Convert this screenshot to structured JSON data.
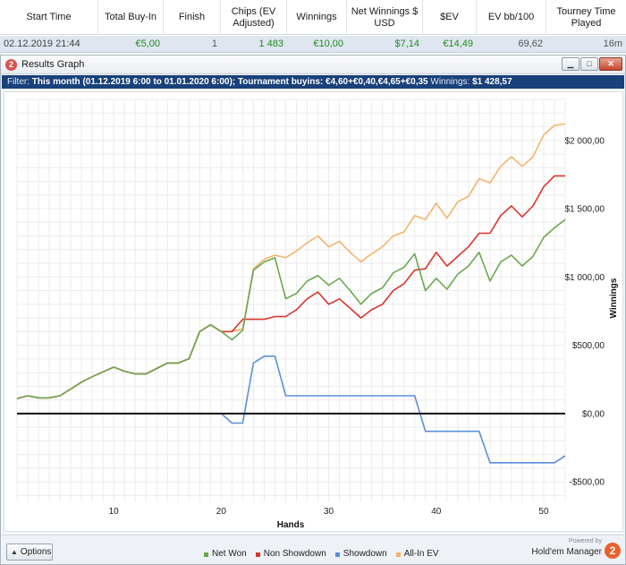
{
  "table": {
    "headers": [
      "Start Time",
      "Total Buy-In",
      "Finish",
      "Chips (EV Adjusted)",
      "Winnings",
      "Net Winnings $ USD",
      "$EV",
      "EV bb/100",
      "Tourney Time Played"
    ],
    "row": [
      "02.12.2019 21:44",
      "€5,00",
      "1",
      "1 483",
      "€10,00",
      "$7,14",
      "€14,49",
      "69,62",
      "16m"
    ]
  },
  "window": {
    "title": "Results Graph",
    "buttons": {
      "minimize": "▁",
      "maximize": "□",
      "close": "✕"
    }
  },
  "filter": {
    "label": "Filter:",
    "value": "This month (01.12.2019 6:00 to 01.01.2020 6:00); Tournament buyins: €4,60+€0,40,€4,65+€0,35",
    "winnings_label": "Winnings:",
    "winnings_value": "$1 428,57"
  },
  "chart_data": {
    "type": "line",
    "xlabel": "Hands",
    "ylabel": "Winnings",
    "xlim": [
      1,
      52
    ],
    "ylim": [
      -650,
      2300
    ],
    "x_ticks": [
      10,
      20,
      30,
      40,
      50
    ],
    "y_ticks": [
      {
        "value": -500,
        "label": "-$500,00"
      },
      {
        "value": 0,
        "label": "$0,00"
      },
      {
        "value": 500,
        "label": "$500,00"
      },
      {
        "value": 1000,
        "label": "$1 000,00"
      },
      {
        "value": 1500,
        "label": "$1 500,00"
      },
      {
        "value": 2000,
        "label": "$2 000,00"
      }
    ],
    "grid": true,
    "legend_position": "bottom",
    "x": [
      1,
      2,
      3,
      4,
      5,
      6,
      7,
      8,
      9,
      10,
      11,
      12,
      13,
      14,
      15,
      16,
      17,
      18,
      19,
      20,
      21,
      22,
      23,
      24,
      25,
      26,
      27,
      28,
      29,
      30,
      31,
      32,
      33,
      34,
      35,
      36,
      37,
      38,
      39,
      40,
      41,
      42,
      43,
      44,
      45,
      46,
      47,
      48,
      49,
      50,
      51,
      52
    ],
    "series": [
      {
        "name": "All-In EV",
        "color": "#f5b36b",
        "values": [
          110,
          130,
          115,
          115,
          130,
          180,
          230,
          270,
          305,
          340,
          310,
          290,
          290,
          330,
          370,
          370,
          400,
          600,
          650,
          600,
          600,
          620,
          1060,
          1130,
          1160,
          1140,
          1190,
          1250,
          1300,
          1220,
          1260,
          1180,
          1110,
          1170,
          1220,
          1300,
          1330,
          1450,
          1420,
          1540,
          1430,
          1550,
          1590,
          1720,
          1690,
          1810,
          1880,
          1810,
          1880,
          2040,
          2110,
          2120
        ]
      },
      {
        "name": "Non Showdown",
        "color": "#d9342b",
        "values": [
          110,
          130,
          115,
          115,
          130,
          180,
          230,
          270,
          305,
          340,
          310,
          290,
          290,
          330,
          370,
          370,
          400,
          600,
          650,
          600,
          600,
          690,
          690,
          690,
          710,
          710,
          760,
          840,
          890,
          800,
          840,
          770,
          700,
          760,
          800,
          900,
          950,
          1050,
          1060,
          1180,
          1080,
          1150,
          1220,
          1320,
          1320,
          1450,
          1520,
          1440,
          1520,
          1660,
          1740,
          1740
        ]
      },
      {
        "name": "Net Won",
        "color": "#6aa84f",
        "values": [
          110,
          130,
          115,
          115,
          130,
          180,
          230,
          270,
          305,
          340,
          310,
          290,
          290,
          330,
          370,
          370,
          400,
          600,
          650,
          600,
          540,
          610,
          1050,
          1110,
          1140,
          840,
          880,
          970,
          1010,
          940,
          990,
          900,
          800,
          880,
          920,
          1030,
          1070,
          1170,
          900,
          990,
          910,
          1020,
          1080,
          1180,
          970,
          1110,
          1160,
          1080,
          1150,
          1290,
          1360,
          1420
        ]
      },
      {
        "name": "Showdown",
        "color": "#5b8fdc",
        "values": [
          null,
          null,
          null,
          null,
          null,
          null,
          null,
          null,
          null,
          null,
          null,
          null,
          null,
          null,
          null,
          null,
          null,
          null,
          null,
          0,
          -70,
          -70,
          370,
          420,
          420,
          130,
          130,
          130,
          130,
          130,
          130,
          130,
          130,
          130,
          130,
          130,
          130,
          130,
          -130,
          -130,
          -130,
          -130,
          -130,
          -130,
          -360,
          -360,
          -360,
          -360,
          -360,
          -360,
          -360,
          -310
        ]
      }
    ],
    "legend_order": [
      "Net Won",
      "Non Showdown",
      "Showdown",
      "All-In EV"
    ]
  },
  "bottom": {
    "options_label": "Options",
    "options_arrow": "▲",
    "powered_by": "Powered by",
    "brand_name": "Hold'em Manager",
    "brand_logo": "2"
  },
  "icons": {
    "app": "hm-app-icon",
    "brand": "hm2-logo-icon"
  }
}
